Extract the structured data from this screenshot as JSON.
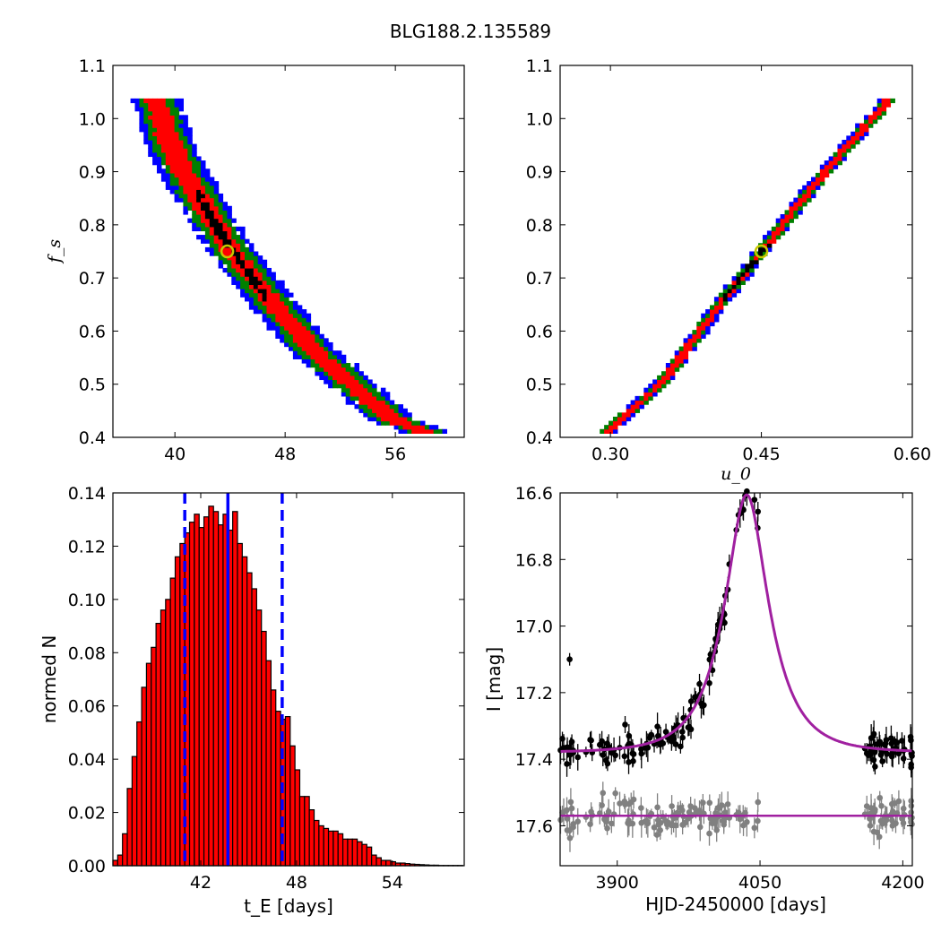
{
  "title": "BLG188.2.135589",
  "colors": {
    "blue": "#0000ff",
    "green": "#008000",
    "red": "#ff0000",
    "black": "#000000",
    "marker": "#c8c800",
    "model": "#a020a0",
    "resid": "#808080"
  },
  "chart_data": [
    {
      "id": "fs_vs_tE",
      "type": "heatmap",
      "xlabel": "",
      "ylabel": "f_s",
      "xlim": [
        35.5,
        61
      ],
      "ylim": [
        0.4,
        1.1
      ],
      "xticks": [
        40,
        48,
        56
      ],
      "xtick_labels": [
        "40",
        "48",
        "56"
      ],
      "yticks": [
        0.4,
        0.5,
        0.6,
        0.7,
        0.8,
        0.9,
        1.0,
        1.1
      ],
      "ytick_labels": [
        "0.4",
        "0.5",
        "0.6",
        "0.7",
        "0.8",
        "0.9",
        "1.0",
        "1.1"
      ],
      "ridge": [
        [
          38.7,
          1.03
        ],
        [
          40,
          0.93
        ],
        [
          42,
          0.84
        ],
        [
          44,
          0.755
        ],
        [
          46,
          0.69
        ],
        [
          48,
          0.625
        ],
        [
          50,
          0.565
        ],
        [
          52,
          0.52
        ],
        [
          54,
          0.475
        ],
        [
          56,
          0.43
        ],
        [
          58,
          0.415
        ]
      ],
      "widths": {
        "blue": 1.8,
        "green": 1.3,
        "red": 0.8,
        "black": 0.35
      },
      "black_range": [
        41.5,
        46.5
      ],
      "best_fit": {
        "x": 43.8,
        "y": 0.75
      }
    },
    {
      "id": "fs_vs_u0",
      "type": "heatmap",
      "xlabel": "u_0",
      "ylabel": "",
      "xlim": [
        0.25,
        0.6
      ],
      "ylim": [
        0.4,
        1.1
      ],
      "xticks": [
        0.3,
        0.45,
        0.6
      ],
      "xtick_labels": [
        "0.30",
        "0.45",
        "0.60"
      ],
      "yticks": [
        0.4,
        0.5,
        0.6,
        0.7,
        0.8,
        0.9,
        1.0,
        1.1
      ],
      "ytick_labels": [
        "0.4",
        "0.5",
        "0.6",
        "0.7",
        "0.8",
        "0.9",
        "1.0",
        "1.1"
      ],
      "ridge": [
        [
          0.295,
          0.41
        ],
        [
          0.35,
          0.5
        ],
        [
          0.4,
          0.63
        ],
        [
          0.45,
          0.75
        ],
        [
          0.5,
          0.87
        ],
        [
          0.55,
          0.98
        ],
        [
          0.575,
          1.03
        ]
      ],
      "widths": {
        "blue": 0.008,
        "green": 0.006,
        "red": 0.004,
        "black": 0.0025
      },
      "black_range": [
        0.41,
        0.46
      ],
      "best_fit": {
        "x": 0.45,
        "y": 0.75
      }
    },
    {
      "id": "tE_histogram",
      "type": "bar",
      "xlabel": "t_E [days]",
      "ylabel": "normed N",
      "xlim": [
        36.5,
        58.5
      ],
      "ylim": [
        0,
        0.14
      ],
      "xticks": [
        42,
        48,
        54
      ],
      "xtick_labels": [
        "42",
        "48",
        "54"
      ],
      "yticks": [
        0,
        0.02,
        0.04,
        0.06,
        0.08,
        0.1,
        0.12,
        0.14
      ],
      "ytick_labels": [
        "0.00",
        "0.02",
        "0.04",
        "0.06",
        "0.08",
        "0.10",
        "0.12",
        "0.14"
      ],
      "bin_start": 36.5,
      "bin_width": 0.3,
      "values": [
        0.002,
        0.004,
        0.012,
        0.029,
        0.041,
        0.054,
        0.067,
        0.076,
        0.082,
        0.091,
        0.096,
        0.1,
        0.108,
        0.116,
        0.121,
        0.125,
        0.129,
        0.132,
        0.127,
        0.131,
        0.135,
        0.133,
        0.128,
        0.132,
        0.126,
        0.133,
        0.121,
        0.116,
        0.11,
        0.104,
        0.096,
        0.088,
        0.077,
        0.066,
        0.058,
        0.055,
        0.056,
        0.045,
        0.036,
        0.026,
        0.026,
        0.021,
        0.017,
        0.015,
        0.014,
        0.013,
        0.013,
        0.012,
        0.01,
        0.01,
        0.01,
        0.009,
        0.008,
        0.007,
        0.004,
        0.003,
        0.002,
        0.002,
        0.0015,
        0.001,
        0.001,
        0.0008,
        0.0006,
        0.0005,
        0.0004,
        0.0003,
        0.0002,
        0.0002,
        0.0001,
        0.0001,
        0.0001,
        0.0001,
        0.0001
      ],
      "median": 43.7,
      "lower": 41.0,
      "upper": 47.1
    },
    {
      "id": "lightcurve",
      "type": "scatter",
      "xlabel": "HJD-2450000 [days]",
      "ylabel": "I [mag]",
      "xlim": [
        3840,
        4210
      ],
      "ylim": [
        17.72,
        16.6
      ],
      "xticks": [
        3900,
        4050,
        4200
      ],
      "xtick_labels": [
        "3900",
        "4050",
        "4200"
      ],
      "yticks": [
        16.6,
        16.8,
        17.0,
        17.2,
        17.4,
        17.6
      ],
      "ytick_labels": [
        "16.6",
        "16.8",
        "17.0",
        "17.2",
        "17.4",
        "17.6"
      ],
      "model": {
        "t0": 4036,
        "tE": 43.7,
        "u0": 0.45,
        "fs": 0.75,
        "base": 17.38
      },
      "resid_offset": 17.57,
      "outlier": {
        "x": 3850,
        "y": 17.1
      }
    }
  ]
}
